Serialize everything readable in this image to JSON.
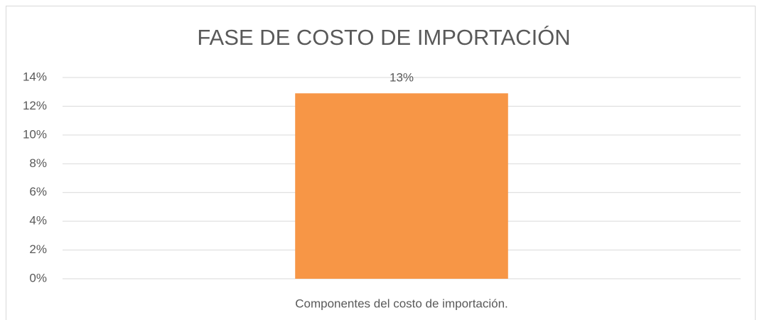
{
  "chart_data": {
    "type": "bar",
    "title": "FASE DE COSTO DE IMPORTACIÓN",
    "categories": [
      "Componentes del costo de importación."
    ],
    "values": [
      12.9
    ],
    "value_labels": [
      "13%"
    ],
    "color": "#f79646",
    "ylim": [
      0,
      14
    ],
    "yticks": [
      {
        "value": 0,
        "label": "0%"
      },
      {
        "value": 2,
        "label": "2%"
      },
      {
        "value": 4,
        "label": "4%"
      },
      {
        "value": 6,
        "label": "6%"
      },
      {
        "value": 8,
        "label": "8%"
      },
      {
        "value": 10,
        "label": "10%"
      },
      {
        "value": 12,
        "label": "12%"
      },
      {
        "value": 14,
        "label": "14%"
      }
    ],
    "grid": true
  }
}
